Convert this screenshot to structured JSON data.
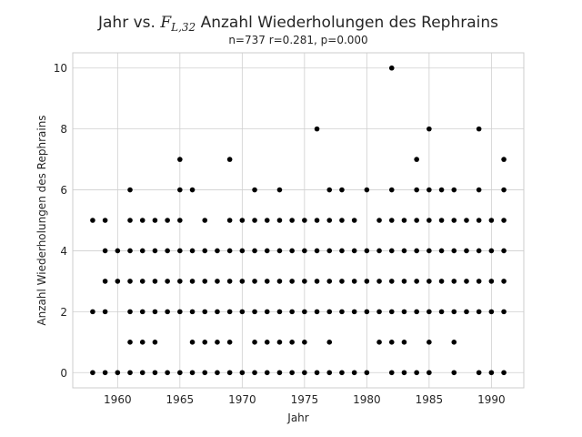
{
  "chart_data": {
    "type": "scatter",
    "title_prefix": "Jahr vs. ",
    "title_math_base": "F",
    "title_math_sub": "L,32",
    "title_suffix": " Anzahl Wiederholungen des Rephrains",
    "subtitle": "n=737 r=0.281, p=0.000",
    "xlabel": "Jahr",
    "ylabel": "Anzahl Wiederholungen des Rephrains",
    "xlim": [
      1956.4,
      1992.6
    ],
    "ylim": [
      -0.5,
      10.5
    ],
    "xticks": [
      1960,
      1965,
      1970,
      1975,
      1980,
      1985,
      1990
    ],
    "yticks": [
      0,
      2,
      4,
      6,
      8,
      10
    ],
    "grid": true,
    "point_color": "#000000",
    "points": [
      [
        1958,
        0
      ],
      [
        1958,
        2
      ],
      [
        1958,
        5
      ],
      [
        1959,
        0
      ],
      [
        1959,
        2
      ],
      [
        1959,
        3
      ],
      [
        1959,
        4
      ],
      [
        1959,
        5
      ],
      [
        1960,
        0
      ],
      [
        1960,
        3
      ],
      [
        1960,
        4
      ],
      [
        1961,
        0
      ],
      [
        1961,
        1
      ],
      [
        1961,
        2
      ],
      [
        1961,
        3
      ],
      [
        1961,
        4
      ],
      [
        1961,
        5
      ],
      [
        1961,
        6
      ],
      [
        1962,
        0
      ],
      [
        1962,
        1
      ],
      [
        1962,
        2
      ],
      [
        1962,
        3
      ],
      [
        1962,
        4
      ],
      [
        1962,
        5
      ],
      [
        1963,
        0
      ],
      [
        1963,
        1
      ],
      [
        1963,
        2
      ],
      [
        1963,
        3
      ],
      [
        1963,
        4
      ],
      [
        1963,
        5
      ],
      [
        1964,
        0
      ],
      [
        1964,
        2
      ],
      [
        1964,
        3
      ],
      [
        1964,
        4
      ],
      [
        1964,
        5
      ],
      [
        1965,
        0
      ],
      [
        1965,
        2
      ],
      [
        1965,
        3
      ],
      [
        1965,
        4
      ],
      [
        1965,
        5
      ],
      [
        1965,
        6
      ],
      [
        1965,
        7
      ],
      [
        1966,
        0
      ],
      [
        1966,
        1
      ],
      [
        1966,
        2
      ],
      [
        1966,
        3
      ],
      [
        1966,
        4
      ],
      [
        1966,
        6
      ],
      [
        1967,
        0
      ],
      [
        1967,
        1
      ],
      [
        1967,
        2
      ],
      [
        1967,
        3
      ],
      [
        1967,
        4
      ],
      [
        1967,
        5
      ],
      [
        1968,
        0
      ],
      [
        1968,
        1
      ],
      [
        1968,
        2
      ],
      [
        1968,
        3
      ],
      [
        1968,
        4
      ],
      [
        1969,
        0
      ],
      [
        1969,
        1
      ],
      [
        1969,
        2
      ],
      [
        1969,
        3
      ],
      [
        1969,
        4
      ],
      [
        1969,
        5
      ],
      [
        1969,
        7
      ],
      [
        1970,
        0
      ],
      [
        1970,
        2
      ],
      [
        1970,
        3
      ],
      [
        1970,
        4
      ],
      [
        1970,
        5
      ],
      [
        1971,
        0
      ],
      [
        1971,
        1
      ],
      [
        1971,
        2
      ],
      [
        1971,
        3
      ],
      [
        1971,
        4
      ],
      [
        1971,
        5
      ],
      [
        1971,
        6
      ],
      [
        1972,
        0
      ],
      [
        1972,
        1
      ],
      [
        1972,
        2
      ],
      [
        1972,
        3
      ],
      [
        1972,
        4
      ],
      [
        1972,
        5
      ],
      [
        1973,
        0
      ],
      [
        1973,
        1
      ],
      [
        1973,
        2
      ],
      [
        1973,
        3
      ],
      [
        1973,
        4
      ],
      [
        1973,
        5
      ],
      [
        1973,
        6
      ],
      [
        1974,
        0
      ],
      [
        1974,
        1
      ],
      [
        1974,
        2
      ],
      [
        1974,
        3
      ],
      [
        1974,
        4
      ],
      [
        1974,
        5
      ],
      [
        1975,
        0
      ],
      [
        1975,
        1
      ],
      [
        1975,
        2
      ],
      [
        1975,
        3
      ],
      [
        1975,
        4
      ],
      [
        1975,
        5
      ],
      [
        1976,
        0
      ],
      [
        1976,
        2
      ],
      [
        1976,
        3
      ],
      [
        1976,
        4
      ],
      [
        1976,
        5
      ],
      [
        1976,
        8
      ],
      [
        1977,
        0
      ],
      [
        1977,
        1
      ],
      [
        1977,
        2
      ],
      [
        1977,
        3
      ],
      [
        1977,
        4
      ],
      [
        1977,
        5
      ],
      [
        1977,
        6
      ],
      [
        1978,
        0
      ],
      [
        1978,
        2
      ],
      [
        1978,
        3
      ],
      [
        1978,
        4
      ],
      [
        1978,
        5
      ],
      [
        1978,
        6
      ],
      [
        1979,
        0
      ],
      [
        1979,
        2
      ],
      [
        1979,
        3
      ],
      [
        1979,
        4
      ],
      [
        1979,
        5
      ],
      [
        1980,
        0
      ],
      [
        1980,
        2
      ],
      [
        1980,
        3
      ],
      [
        1980,
        4
      ],
      [
        1980,
        6
      ],
      [
        1981,
        1
      ],
      [
        1981,
        2
      ],
      [
        1981,
        3
      ],
      [
        1981,
        4
      ],
      [
        1981,
        5
      ],
      [
        1982,
        0
      ],
      [
        1982,
        1
      ],
      [
        1982,
        2
      ],
      [
        1982,
        3
      ],
      [
        1982,
        4
      ],
      [
        1982,
        5
      ],
      [
        1982,
        6
      ],
      [
        1982,
        10
      ],
      [
        1983,
        0
      ],
      [
        1983,
        1
      ],
      [
        1983,
        2
      ],
      [
        1983,
        3
      ],
      [
        1983,
        4
      ],
      [
        1983,
        5
      ],
      [
        1984,
        0
      ],
      [
        1984,
        2
      ],
      [
        1984,
        3
      ],
      [
        1984,
        4
      ],
      [
        1984,
        5
      ],
      [
        1984,
        6
      ],
      [
        1984,
        7
      ],
      [
        1985,
        0
      ],
      [
        1985,
        1
      ],
      [
        1985,
        2
      ],
      [
        1985,
        3
      ],
      [
        1985,
        4
      ],
      [
        1985,
        5
      ],
      [
        1985,
        6
      ],
      [
        1985,
        8
      ],
      [
        1986,
        2
      ],
      [
        1986,
        3
      ],
      [
        1986,
        4
      ],
      [
        1986,
        5
      ],
      [
        1986,
        6
      ],
      [
        1987,
        0
      ],
      [
        1987,
        1
      ],
      [
        1987,
        2
      ],
      [
        1987,
        3
      ],
      [
        1987,
        4
      ],
      [
        1987,
        5
      ],
      [
        1987,
        6
      ],
      [
        1988,
        2
      ],
      [
        1988,
        3
      ],
      [
        1988,
        4
      ],
      [
        1988,
        5
      ],
      [
        1989,
        0
      ],
      [
        1989,
        2
      ],
      [
        1989,
        3
      ],
      [
        1989,
        4
      ],
      [
        1989,
        5
      ],
      [
        1989,
        6
      ],
      [
        1989,
        8
      ],
      [
        1990,
        0
      ],
      [
        1990,
        2
      ],
      [
        1990,
        3
      ],
      [
        1990,
        4
      ],
      [
        1990,
        5
      ],
      [
        1991,
        0
      ],
      [
        1991,
        2
      ],
      [
        1991,
        3
      ],
      [
        1991,
        4
      ],
      [
        1991,
        5
      ],
      [
        1991,
        6
      ],
      [
        1991,
        7
      ]
    ]
  }
}
